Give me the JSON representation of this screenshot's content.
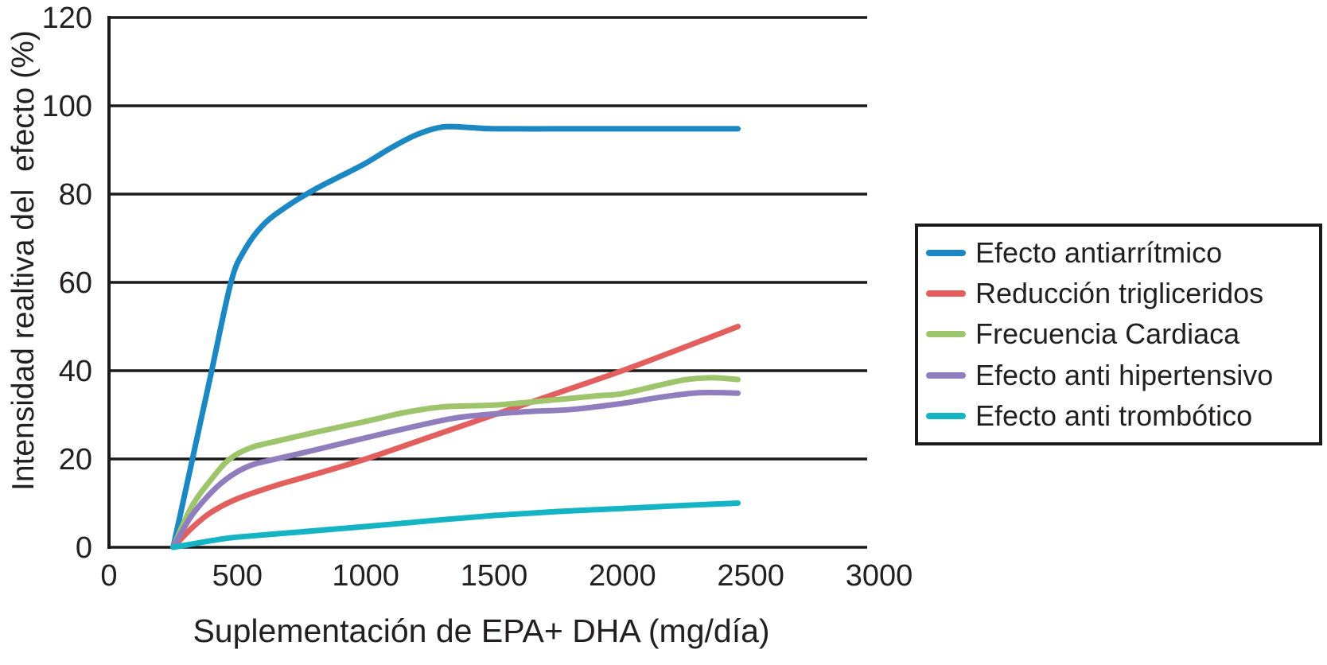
{
  "chart_data": {
    "type": "line",
    "title": "",
    "xlabel": "Suplementación de EPA+ DHA (mg/día)",
    "ylabel": "Intensidad realtiva del  efecto (%)",
    "xlim": [
      0,
      3000
    ],
    "ylim": [
      0,
      120
    ],
    "x_ticks": [
      0,
      500,
      1000,
      1500,
      2000,
      2500,
      3000
    ],
    "y_ticks": [
      0,
      20,
      40,
      60,
      80,
      100,
      120
    ],
    "grid": "horizontal-only",
    "legend_position": "right",
    "axis_color": "#1a1a1a",
    "text_color": "#231f20",
    "series": [
      {
        "name": "Efecto antiarrítmico",
        "color": "#1b87c3",
        "points": [
          [
            250,
            0
          ],
          [
            325,
            20
          ],
          [
            400,
            40
          ],
          [
            475,
            60
          ],
          [
            525,
            67
          ],
          [
            600,
            73
          ],
          [
            700,
            77.5
          ],
          [
            800,
            81
          ],
          [
            900,
            84
          ],
          [
            1000,
            87
          ],
          [
            1100,
            90.5
          ],
          [
            1200,
            93.5
          ],
          [
            1300,
            95.2
          ],
          [
            1400,
            95.1
          ],
          [
            1500,
            94.8
          ],
          [
            1750,
            94.8
          ],
          [
            2000,
            94.8
          ],
          [
            2250,
            94.8
          ],
          [
            2450,
            94.8
          ]
        ]
      },
      {
        "name": "Reducción trigliceridos",
        "color": "#e35f5e",
        "points": [
          [
            250,
            0
          ],
          [
            325,
            4.5
          ],
          [
            400,
            8
          ],
          [
            500,
            11
          ],
          [
            650,
            14
          ],
          [
            800,
            16.5
          ],
          [
            1000,
            20
          ],
          [
            1250,
            25
          ],
          [
            1500,
            30
          ],
          [
            1750,
            35
          ],
          [
            2000,
            40
          ],
          [
            2250,
            45.5
          ],
          [
            2450,
            50
          ]
        ]
      },
      {
        "name": "Frecuencia Cardiaca",
        "color": "#9ec46c",
        "points": [
          [
            250,
            0
          ],
          [
            320,
            9
          ],
          [
            400,
            15.5
          ],
          [
            470,
            20
          ],
          [
            550,
            22.5
          ],
          [
            650,
            24
          ],
          [
            800,
            26
          ],
          [
            1000,
            28.5
          ],
          [
            1150,
            30.5
          ],
          [
            1300,
            31.8
          ],
          [
            1500,
            32.2
          ],
          [
            1700,
            33.2
          ],
          [
            1900,
            34.3
          ],
          [
            2000,
            34.8
          ],
          [
            2150,
            36.8
          ],
          [
            2250,
            38
          ],
          [
            2350,
            38.4
          ],
          [
            2450,
            38
          ]
        ]
      },
      {
        "name": "Efecto anti hipertensivo",
        "color": "#8f7dbe",
        "points": [
          [
            250,
            0
          ],
          [
            320,
            7
          ],
          [
            400,
            12.5
          ],
          [
            470,
            16
          ],
          [
            550,
            18.5
          ],
          [
            650,
            20
          ],
          [
            800,
            22
          ],
          [
            1000,
            24.8
          ],
          [
            1200,
            27.5
          ],
          [
            1350,
            29.3
          ],
          [
            1500,
            30.2
          ],
          [
            1650,
            30.8
          ],
          [
            1800,
            31.2
          ],
          [
            2000,
            32.6
          ],
          [
            2150,
            34
          ],
          [
            2300,
            35
          ],
          [
            2450,
            34.9
          ]
        ]
      },
      {
        "name": "Efecto anti trombótico",
        "color": "#14b4c4",
        "points": [
          [
            250,
            0
          ],
          [
            400,
            1.5
          ],
          [
            500,
            2.3
          ],
          [
            750,
            3.5
          ],
          [
            1000,
            4.7
          ],
          [
            1250,
            6
          ],
          [
            1500,
            7.2
          ],
          [
            1750,
            8.1
          ],
          [
            2000,
            8.8
          ],
          [
            2250,
            9.5
          ],
          [
            2450,
            10
          ]
        ]
      }
    ]
  }
}
